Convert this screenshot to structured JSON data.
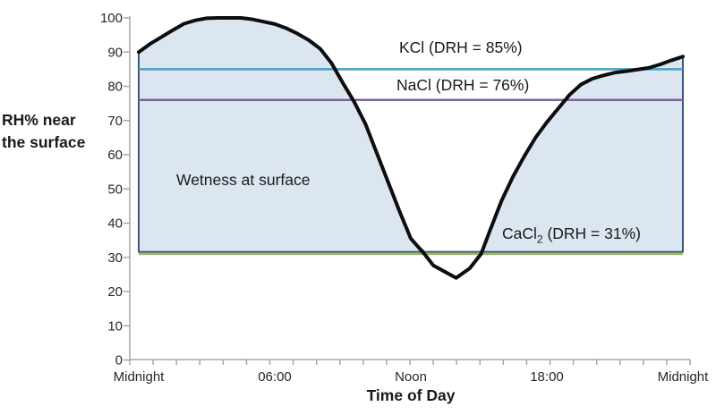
{
  "chart_data": {
    "type": "line",
    "title": "",
    "xlabel": "Time of Day",
    "ylabel": "RH% near the surface",
    "ylabel_line1": "RH% near",
    "ylabel_line2": "the surface",
    "x_axis": {
      "range_hours": [
        0,
        24
      ],
      "tick_labels": [
        "Midnight",
        "06:00",
        "Noon",
        "18:00",
        "Midnight"
      ],
      "tick_hours": [
        0,
        6,
        12,
        18,
        24
      ],
      "minor_tick_count": 25
    },
    "y_axis": {
      "range": [
        0,
        100
      ],
      "tick_values": [
        0,
        10,
        20,
        30,
        40,
        50,
        60,
        70,
        80,
        90,
        100
      ],
      "tick_labels": [
        "0",
        "10",
        "20",
        "30",
        "40",
        "50",
        "60",
        "70",
        "80",
        "90",
        "100"
      ]
    },
    "series": [
      {
        "name": "RH% near the surface",
        "color": "#0d0d0d",
        "width": 4,
        "points_time_rh": [
          [
            0,
            90
          ],
          [
            0.5,
            92.4
          ],
          [
            1,
            94.4
          ],
          [
            1.5,
            96.4
          ],
          [
            2,
            98.3
          ],
          [
            2.5,
            99.3
          ],
          [
            3,
            99.9
          ],
          [
            3.5,
            100
          ],
          [
            4,
            100
          ],
          [
            4.5,
            100
          ],
          [
            5,
            99.6
          ],
          [
            5.5,
            98.9
          ],
          [
            6,
            98.2
          ],
          [
            6.5,
            97
          ],
          [
            7,
            95.4
          ],
          [
            7.5,
            93.5
          ],
          [
            8,
            91
          ],
          [
            8.5,
            86.8
          ],
          [
            9,
            81
          ],
          [
            9.5,
            75.5
          ],
          [
            10,
            69
          ],
          [
            10.5,
            60.5
          ],
          [
            11,
            52
          ],
          [
            11.5,
            43.5
          ],
          [
            12,
            35.5
          ],
          [
            12.6,
            31
          ],
          [
            13,
            27.6
          ],
          [
            13.5,
            25.8
          ],
          [
            14,
            24
          ],
          [
            14.6,
            26.8
          ],
          [
            15.1,
            31
          ],
          [
            15.5,
            38
          ],
          [
            16,
            46.5
          ],
          [
            16.5,
            53.5
          ],
          [
            17,
            59.5
          ],
          [
            17.5,
            65
          ],
          [
            18,
            69.5
          ],
          [
            18.5,
            73.5
          ],
          [
            19,
            77.5
          ],
          [
            19.5,
            80.5
          ],
          [
            20,
            82.2
          ],
          [
            20.5,
            83.2
          ],
          [
            21,
            84
          ],
          [
            21.5,
            84.4
          ],
          [
            22,
            84.9
          ],
          [
            22.5,
            85.4
          ],
          [
            23,
            86.4
          ],
          [
            23.5,
            87.6
          ],
          [
            24,
            88.7
          ]
        ]
      }
    ],
    "area": {
      "label": "Wetness at surface",
      "fill": "#dce6f1",
      "border": "#3a5780",
      "baseline_rh": 31.6
    },
    "reference_lines": [
      {
        "name": "KCl",
        "label": "KCl (DRH = 85%)",
        "value": 85,
        "color": "#3aa4c6"
      },
      {
        "name": "NaCl",
        "label": "NaCl (DRH = 76%)",
        "value": 76,
        "color": "#7b61a4"
      },
      {
        "name": "CaCl2",
        "label_prefix": "CaCl",
        "label_sub": "2",
        "label_suffix": " (DRH = 31%)",
        "value": 31,
        "color": "#9bbb59"
      }
    ],
    "style": {
      "axis_color": "#a6a6a6",
      "tick_text_color": "#262626",
      "ref_line_width": 2.5
    },
    "grid": "off",
    "legend": "none"
  }
}
